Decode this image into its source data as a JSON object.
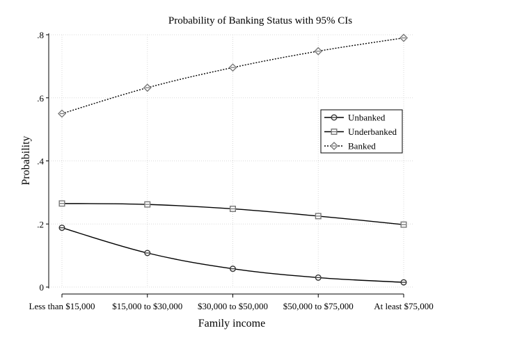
{
  "chart_data": {
    "type": "line",
    "title": "Probability of Banking Status with 95% CIs",
    "xlabel": "Family income",
    "ylabel": "Probability",
    "categories": [
      "Less than $15,000",
      "$15,000 to $30,000",
      "$30,000 to $50,000",
      "$50,000 to $75,000",
      "At least $75,000"
    ],
    "ylim": [
      0,
      0.8
    ],
    "yticks": [
      0,
      0.2,
      0.4,
      0.6,
      0.8
    ],
    "ytick_labels": [
      "0",
      ".2",
      ".4",
      ".6",
      ".8"
    ],
    "grid": true,
    "legend_position": "right",
    "series": [
      {
        "name": "Unbanked",
        "values": [
          0.188,
          0.108,
          0.058,
          0.03,
          0.015
        ],
        "marker": "circle",
        "line": "solid",
        "color": "#000000",
        "marker_color": "#333333"
      },
      {
        "name": "Underbanked",
        "values": [
          0.265,
          0.262,
          0.248,
          0.225,
          0.198
        ],
        "marker": "square",
        "line": "solid",
        "color": "#000000",
        "marker_color": "#777777"
      },
      {
        "name": "Banked",
        "values": [
          0.55,
          0.632,
          0.696,
          0.748,
          0.79
        ],
        "marker": "diamond",
        "line": "dotted",
        "color": "#000000",
        "marker_color": "#777777"
      }
    ]
  }
}
